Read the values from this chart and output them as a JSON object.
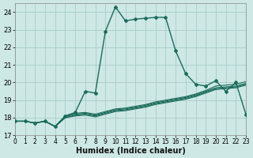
{
  "xlabel": "Humidex (Indice chaleur)",
  "bg_color": "#cde8e5",
  "grid_color": "#a8ccca",
  "line_color": "#1a6b5a",
  "xlim": [
    0,
    23
  ],
  "ylim": [
    17,
    24.5
  ],
  "yticks": [
    17,
    18,
    19,
    20,
    21,
    22,
    23,
    24
  ],
  "xticks": [
    0,
    1,
    2,
    3,
    4,
    5,
    6,
    7,
    8,
    9,
    10,
    11,
    12,
    13,
    14,
    15,
    16,
    17,
    18,
    19,
    20,
    21,
    22,
    23
  ],
  "lines": [
    {
      "y": [
        17.8,
        17.8,
        17.7,
        17.8,
        17.5,
        18.1,
        18.3,
        19.5,
        19.4,
        22.9,
        24.3,
        23.5,
        23.6,
        23.65,
        23.7,
        23.7,
        21.8,
        20.5,
        19.9,
        19.8,
        20.1,
        19.5,
        20.0,
        18.2
      ],
      "marker": true,
      "lw": 1.0
    },
    {
      "y": [
        17.8,
        17.8,
        17.7,
        17.8,
        17.5,
        18.1,
        18.25,
        18.3,
        18.2,
        18.35,
        18.5,
        18.55,
        18.65,
        18.75,
        18.9,
        19.0,
        19.1,
        19.2,
        19.35,
        19.55,
        19.8,
        19.85,
        19.9,
        20.05
      ],
      "marker": false,
      "lw": 0.8
    },
    {
      "y": [
        17.8,
        17.8,
        17.7,
        17.8,
        17.5,
        18.05,
        18.2,
        18.25,
        18.15,
        18.3,
        18.45,
        18.5,
        18.6,
        18.7,
        18.85,
        18.95,
        19.05,
        19.15,
        19.3,
        19.5,
        19.7,
        19.75,
        19.8,
        19.95
      ],
      "marker": false,
      "lw": 0.8
    },
    {
      "y": [
        17.8,
        17.8,
        17.7,
        17.8,
        17.5,
        18.0,
        18.15,
        18.2,
        18.1,
        18.25,
        18.4,
        18.45,
        18.55,
        18.65,
        18.8,
        18.9,
        19.0,
        19.1,
        19.25,
        19.45,
        19.65,
        19.7,
        19.75,
        19.9
      ],
      "marker": false,
      "lw": 0.8
    },
    {
      "y": [
        17.8,
        17.8,
        17.7,
        17.8,
        17.5,
        18.0,
        18.1,
        18.15,
        18.05,
        18.2,
        18.35,
        18.4,
        18.5,
        18.6,
        18.75,
        18.85,
        18.95,
        19.05,
        19.2,
        19.4,
        19.6,
        19.65,
        19.7,
        19.85
      ],
      "marker": false,
      "lw": 0.8
    }
  ]
}
